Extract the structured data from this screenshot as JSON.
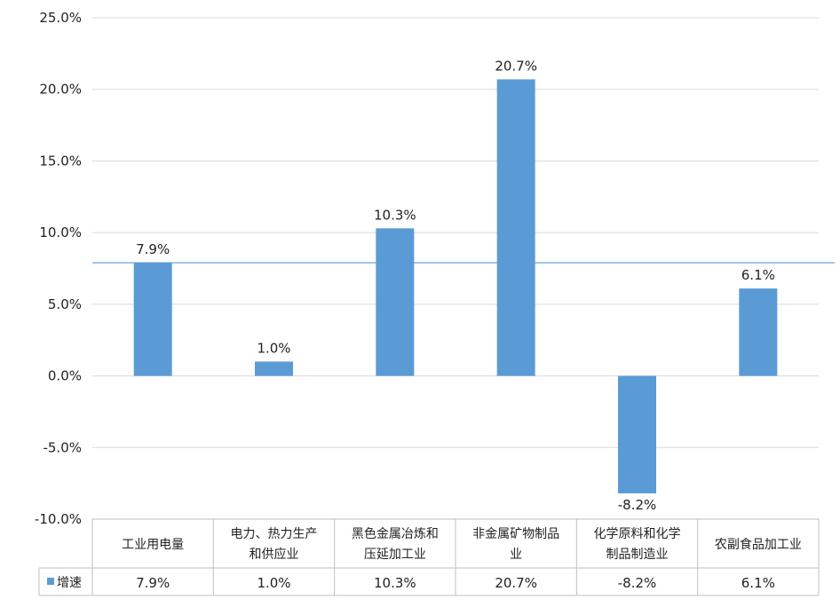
{
  "chart_data": {
    "type": "bar",
    "categories": [
      [
        "工业用电量"
      ],
      [
        "电力、热力生产",
        "和供应业"
      ],
      [
        "黑色金属冶炼和",
        "压延加工业"
      ],
      [
        "非金属矿物制品",
        "业"
      ],
      [
        "化学原料和化学",
        "制品制造业"
      ],
      [
        "农副食品加工业"
      ]
    ],
    "series": [
      {
        "name": "增速",
        "values": [
          7.9,
          1.0,
          10.3,
          20.7,
          -8.2,
          6.1
        ],
        "labels": [
          "7.9%",
          "1.0%",
          "10.3%",
          "20.7%",
          "-8.2%",
          "6.1%"
        ],
        "color": "#5b9bd5"
      }
    ],
    "ylim": [
      -10,
      25
    ],
    "yticks": [
      25,
      20,
      15,
      10,
      5,
      0,
      -5,
      -10
    ],
    "ytick_labels": [
      "25.0%",
      "20.0%",
      "15.0%",
      "10.0%",
      "5.0%",
      "0.0%",
      "-5.0%",
      "-10.0%"
    ],
    "reference_line": 7.9,
    "reference_color": "#5b9bd5",
    "grid": true,
    "data_table": true
  }
}
